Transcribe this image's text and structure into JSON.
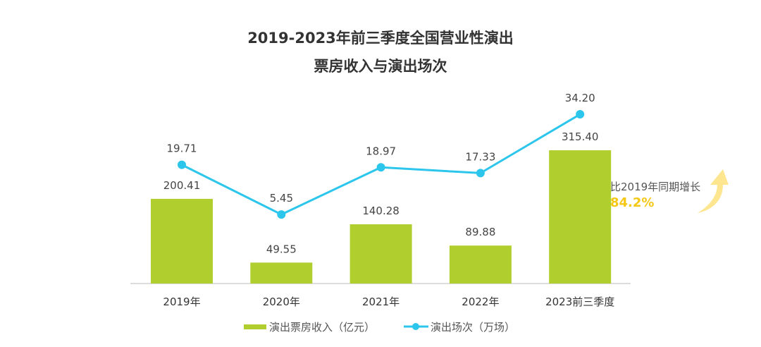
{
  "chart_data": {
    "type": "bar+line",
    "title_line1": "2019-2023年前三季度全国营业性演出",
    "title_line2": "票房收入与演出场次",
    "categories": [
      "2019年",
      "2020年",
      "2021年",
      "2022年",
      "2023前三季度"
    ],
    "series": [
      {
        "name": "演出票房收入（亿元）",
        "type": "bar",
        "color": "#b0cf2f",
        "values": [
          200.41,
          49.55,
          140.28,
          89.88,
          315.4
        ],
        "labels": [
          "200.41",
          "49.55",
          "140.28",
          "89.88",
          "315.40"
        ]
      },
      {
        "name": "演出场次（万场）",
        "type": "line",
        "color": "#2cc6ec",
        "values": [
          19.71,
          5.45,
          18.97,
          17.33,
          34.2
        ],
        "labels": [
          "19.71",
          "5.45",
          "18.97",
          "17.33",
          "34.20"
        ]
      }
    ],
    "annotation": {
      "text": "比2019年同期增长",
      "value": "84.2%",
      "value_color": "#f5c816",
      "arrow_color": "#fde68f"
    },
    "legend_position": "bottom",
    "grid": false
  }
}
